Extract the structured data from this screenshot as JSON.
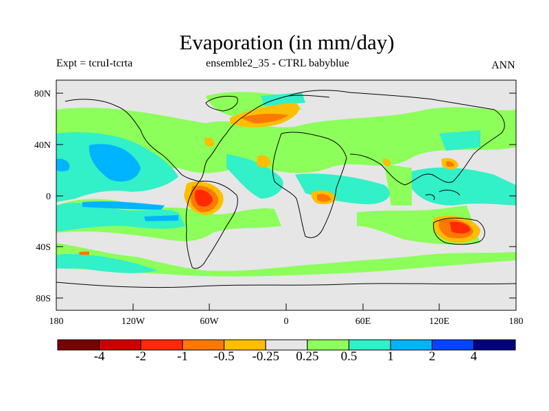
{
  "title": "Evaporation (in mm/day)",
  "subtitle_left": "Expt = tcruI-tcrta",
  "subtitle_center": "ensemble2_35 - CTRL babyblue",
  "subtitle_right": "ANN",
  "lat_ticks": [
    "80N",
    "40N",
    "0",
    "40S",
    "80S"
  ],
  "lon_ticks": [
    "180",
    "120W",
    "60W",
    "0",
    "60E",
    "120E",
    "180"
  ],
  "colorbar": {
    "colors": [
      "#7a0000",
      "#cc0000",
      "#ff2a00",
      "#ff7800",
      "#ffbe00",
      "#e6e6e6",
      "#8cff5a",
      "#32f0c8",
      "#00b4ff",
      "#0046ff",
      "#000080"
    ],
    "labels": [
      "-4",
      "-2",
      "-1",
      "-0.5",
      "-0.25",
      "0.25",
      "0.5",
      "1",
      "2",
      "4"
    ]
  }
}
